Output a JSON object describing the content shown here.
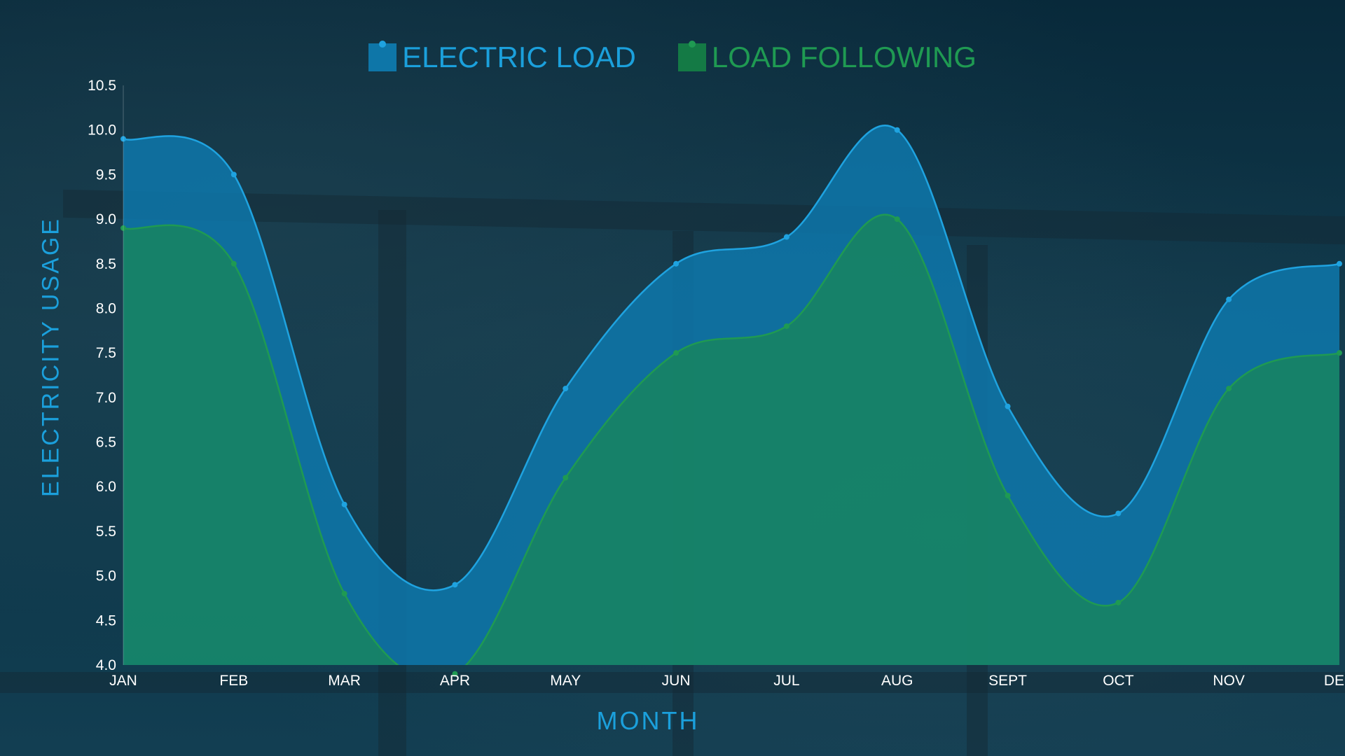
{
  "chart_data": {
    "type": "area",
    "title": "",
    "xlabel": "MONTH",
    "ylabel": "ELECTRICITY USAGE",
    "categories": [
      "JAN",
      "FEB",
      "MAR",
      "APR",
      "MAY",
      "JUN",
      "JUL",
      "AUG",
      "SEPT",
      "OCT",
      "NOV",
      "DEC"
    ],
    "y_ticks": [
      "4.0",
      "4.5",
      "5.0",
      "5.5",
      "6.0",
      "6.5",
      "7.0",
      "7.5",
      "8.0",
      "8.5",
      "9.0",
      "9.5",
      "10.0",
      "10.5"
    ],
    "ylim": [
      4.0,
      10.5
    ],
    "grid": false,
    "legend_position": "top-center",
    "series": [
      {
        "name": "ELECTRIC LOAD",
        "color": "#1fa3e0",
        "fill": "#0e7ab0",
        "values": [
          9.9,
          9.5,
          5.8,
          4.9,
          7.1,
          8.5,
          8.8,
          10.0,
          6.9,
          5.7,
          8.1,
          8.5
        ]
      },
      {
        "name": "LOAD FOLLOWING",
        "color": "#1f9a52",
        "fill": "#17855f",
        "values": [
          8.9,
          8.5,
          4.8,
          3.9,
          6.1,
          7.5,
          7.8,
          9.0,
          5.9,
          4.7,
          7.1,
          7.5
        ]
      }
    ]
  }
}
